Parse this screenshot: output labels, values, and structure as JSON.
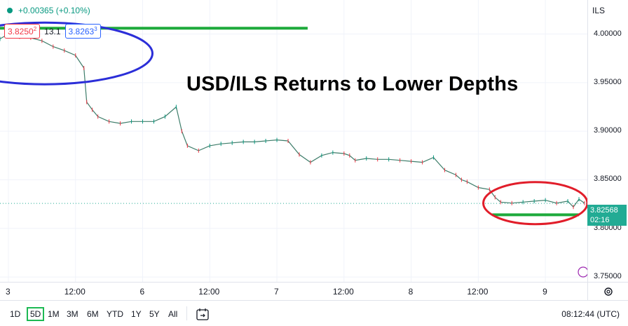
{
  "legend": {
    "change": "+0.00365 (+0.10%)",
    "color": "#089981"
  },
  "quotes": {
    "sell": "3.8250",
    "sell_sup": "2",
    "spread": "13.1",
    "buy": "3.8263",
    "buy_sup": "3"
  },
  "symbol": "ILS",
  "current_price": {
    "value": "3.82568",
    "countdown": "02:16"
  },
  "annotation_title": "USD/ILS Returns to Lower Depths",
  "timeframes": [
    "1D",
    "5D",
    "1M",
    "3M",
    "6M",
    "YTD",
    "1Y",
    "5Y",
    "All"
  ],
  "active_timeframe": "5D",
  "clock": "08:12:44 (UTC)",
  "chart_data": {
    "type": "line",
    "price_ticks": [
      "4.00000",
      "3.95000",
      "3.90000",
      "3.85000",
      "3.80000",
      "3.75000"
    ],
    "price_tick_values": [
      4.0,
      3.95,
      3.9,
      3.85,
      3.8,
      3.75
    ],
    "ylim": [
      3.745,
      4.035
    ],
    "time_ticks": [
      "3",
      "12:00",
      "6",
      "12:00",
      "7",
      "12:00",
      "8",
      "12:00",
      "9"
    ],
    "time_tick_values": [
      0,
      12,
      24,
      36,
      48,
      60,
      72,
      84,
      96
    ],
    "xlim": [
      -1.5,
      103.5
    ],
    "x": [
      -1.5,
      0,
      2,
      4,
      6,
      8,
      10,
      12,
      13.5,
      14,
      15,
      16,
      18,
      20,
      22,
      24,
      26,
      28,
      30,
      31,
      32,
      34,
      36,
      38,
      40,
      42,
      44,
      46,
      48,
      50,
      52,
      54,
      56,
      58,
      60,
      61,
      62,
      64,
      66,
      68,
      70,
      72,
      74,
      76,
      78,
      80,
      81,
      82,
      84,
      86,
      87,
      88,
      90,
      92,
      94,
      96,
      98,
      100,
      101,
      102,
      103
    ],
    "y": [
      3.995,
      4.0,
      3.997,
      3.996,
      3.993,
      3.987,
      3.983,
      3.978,
      3.965,
      3.93,
      3.922,
      3.915,
      3.91,
      3.908,
      3.91,
      3.91,
      3.91,
      3.915,
      3.925,
      3.9,
      3.885,
      3.88,
      3.885,
      3.887,
      3.888,
      3.889,
      3.889,
      3.89,
      3.891,
      3.89,
      3.876,
      3.868,
      3.875,
      3.878,
      3.877,
      3.875,
      3.87,
      3.872,
      3.871,
      3.871,
      3.87,
      3.869,
      3.868,
      3.873,
      3.86,
      3.855,
      3.85,
      3.848,
      3.842,
      3.84,
      3.832,
      3.827,
      3.826,
      3.827,
      3.828,
      3.829,
      3.826,
      3.828,
      3.822,
      3.83,
      3.826
    ],
    "current_value": 3.82568,
    "resistance": 4.006,
    "support": 3.814,
    "colors": {
      "price": "#3e7d6a",
      "resistance": "#1eaa3c",
      "support": "#1eaa3c",
      "ellipse_top": "#2b2ed8",
      "ellipse_bottom": "#e11d2a",
      "grid": "#f0f3fa"
    },
    "grid": true
  }
}
